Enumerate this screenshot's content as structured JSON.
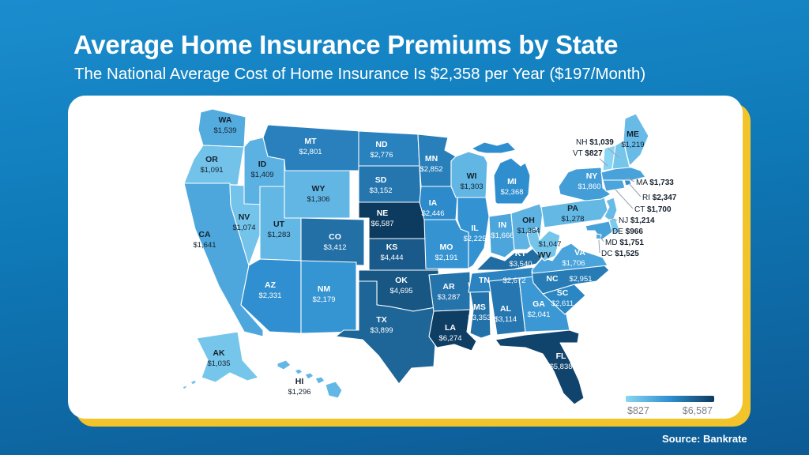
{
  "header": {
    "title": "Average Home Insurance Premiums by State",
    "subtitle": "The National Average Cost of Home Insurance Is $2,358 per Year ($197/Month)"
  },
  "source": "Source: Bankrate",
  "legend": {
    "min": "$827",
    "max": "$6,587"
  },
  "colors": {
    "scale_light": "#8ad5f3",
    "scale_mid": "#2f8fd0",
    "scale_dark": "#0d3a5f",
    "label_dark": "#15212e",
    "label_light": "#ffffff",
    "accent_yellow": "#f3c42a",
    "background_top": "#1b8dce",
    "background_bottom": "#0d5a94"
  },
  "chart_data": {
    "type": "heatmap",
    "title": "Average Home Insurance Premiums by State",
    "subtitle": "The National Average Cost of Home Insurance Is $2,358 per Year ($197/Month)",
    "legend_min": 827,
    "legend_max": 6587,
    "national_average_year": 2358,
    "national_average_month": 197,
    "units": "USD per year"
  },
  "map": {
    "states": [
      {
        "abbr": "WA",
        "value": "$1,539"
      },
      {
        "abbr": "OR",
        "value": "$1,091"
      },
      {
        "abbr": "CA",
        "value": "$1,641"
      },
      {
        "abbr": "NV",
        "value": "$1,074"
      },
      {
        "abbr": "ID",
        "value": "$1,409"
      },
      {
        "abbr": "MT",
        "value": "$2,801"
      },
      {
        "abbr": "WY",
        "value": "$1,306"
      },
      {
        "abbr": "UT",
        "value": "$1,283"
      },
      {
        "abbr": "CO",
        "value": "$3,412"
      },
      {
        "abbr": "AZ",
        "value": "$2,331"
      },
      {
        "abbr": "NM",
        "value": "$2,179"
      },
      {
        "abbr": "ND",
        "value": "$2,776"
      },
      {
        "abbr": "SD",
        "value": "$3,152"
      },
      {
        "abbr": "NE",
        "value": "$6,587"
      },
      {
        "abbr": "KS",
        "value": "$4,444"
      },
      {
        "abbr": "OK",
        "value": "$4,695"
      },
      {
        "abbr": "TX",
        "value": "$3,899"
      },
      {
        "abbr": "MN",
        "value": "$2,852"
      },
      {
        "abbr": "IA",
        "value": "$2,446"
      },
      {
        "abbr": "MO",
        "value": "$2,191"
      },
      {
        "abbr": "AR",
        "value": "$3,287"
      },
      {
        "abbr": "LA",
        "value": "$6,274"
      },
      {
        "abbr": "WI",
        "value": "$1,303"
      },
      {
        "abbr": "IL",
        "value": "$2,225"
      },
      {
        "abbr": "MS",
        "value": "$3,353"
      },
      {
        "abbr": "MI",
        "value": "$2,368"
      },
      {
        "abbr": "IN",
        "value": "$1,666"
      },
      {
        "abbr": "OH",
        "value": "$1,364"
      },
      {
        "abbr": "KY",
        "value": "$3,540"
      },
      {
        "abbr": "TN",
        "value": "$2,672"
      },
      {
        "abbr": "AL",
        "value": "$3,114"
      },
      {
        "abbr": "GA",
        "value": "$2,041"
      },
      {
        "abbr": "FL",
        "value": "$5,838"
      },
      {
        "abbr": "SC",
        "value": "$2,611"
      },
      {
        "abbr": "NC",
        "value": "$2,951"
      },
      {
        "abbr": "VA",
        "value": "$1,706"
      },
      {
        "abbr": "WV",
        "value": "$1,047"
      },
      {
        "abbr": "PA",
        "value": "$1,278"
      },
      {
        "abbr": "NY",
        "value": "$1,860"
      },
      {
        "abbr": "NJ",
        "value": "$1,214"
      },
      {
        "abbr": "DE",
        "value": "$966"
      },
      {
        "abbr": "MD",
        "value": "$1,751"
      },
      {
        "abbr": "DC",
        "value": "$1,525"
      },
      {
        "abbr": "CT",
        "value": "$1,700"
      },
      {
        "abbr": "RI",
        "value": "$2,347"
      },
      {
        "abbr": "MA",
        "value": "$1,733"
      },
      {
        "abbr": "VT",
        "value": "$827"
      },
      {
        "abbr": "NH",
        "value": "$1,039"
      },
      {
        "abbr": "ME",
        "value": "$1,219"
      },
      {
        "abbr": "AK",
        "value": "$1,035"
      },
      {
        "abbr": "HI",
        "value": "$1,296"
      }
    ]
  }
}
